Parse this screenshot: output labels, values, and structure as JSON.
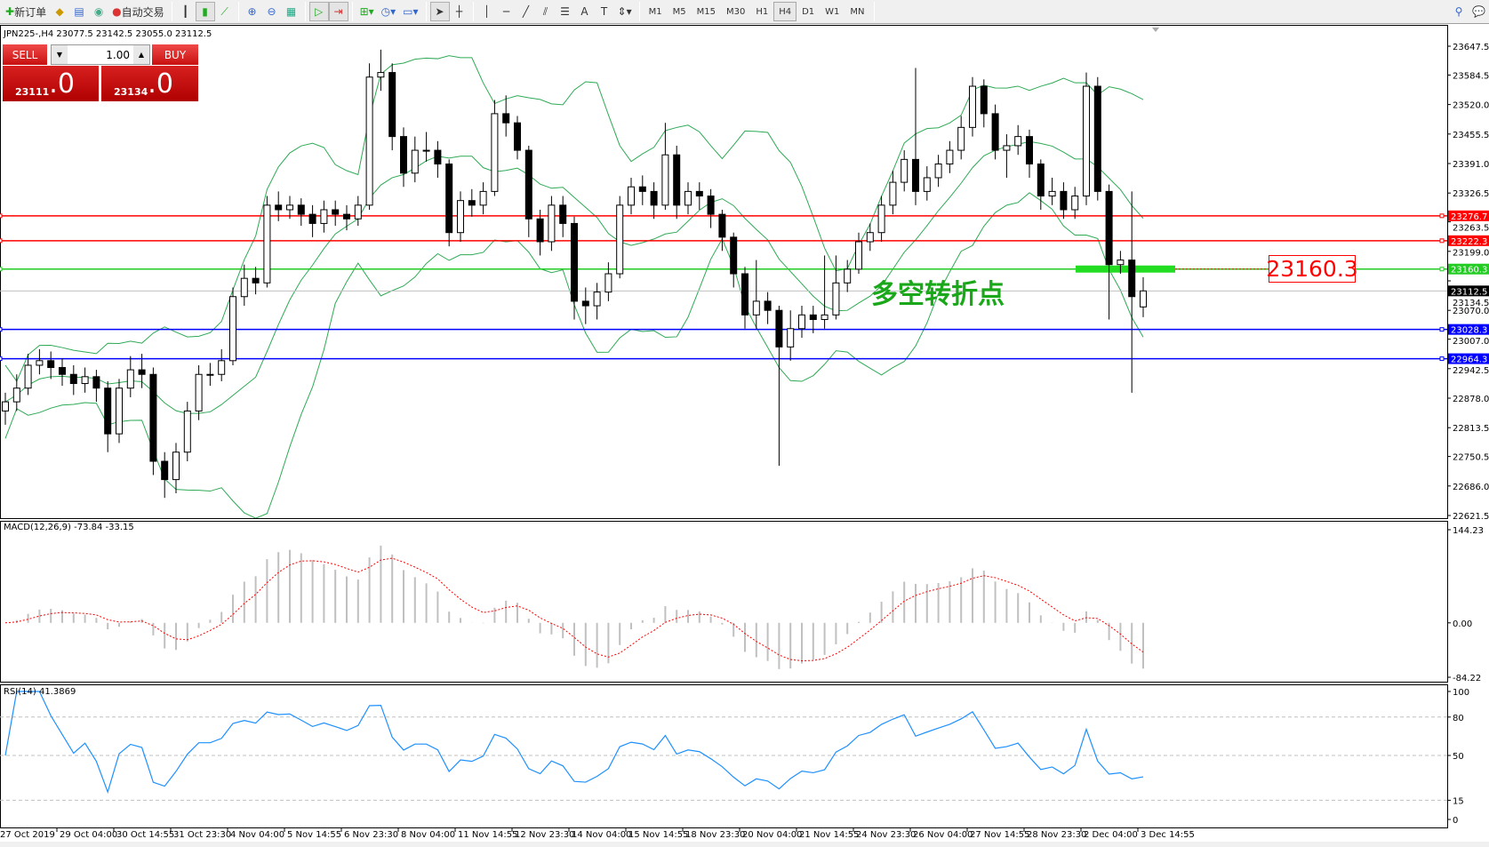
{
  "toolbar": {
    "new_order_label": "新订单",
    "auto_trade_label": "自动交易",
    "icons": [
      "new-order-icon",
      "market-watch-icon",
      "navigator-icon",
      "signals-icon",
      "auto-trading-icon",
      "bar-chart-icon",
      "candlestick-icon",
      "line-chart-icon",
      "zoom-in-icon",
      "zoom-out-icon",
      "tile-windows-icon",
      "autoscroll-icon",
      "chart-shift-icon",
      "indicators-icon",
      "periods-icon",
      "templates-icon",
      "cursor-icon",
      "crosshair-icon",
      "vertical-line-icon",
      "horizontal-line-icon",
      "trendline-icon",
      "equidistant-channel-icon",
      "fibonacci-icon",
      "text-icon",
      "text-label-icon",
      "arrows-icon",
      "search-icon",
      "chat-icon"
    ],
    "timeframes": [
      "M1",
      "M5",
      "M15",
      "M30",
      "H1",
      "H4",
      "D1",
      "W1",
      "MN"
    ],
    "active_timeframe": "H4"
  },
  "chart": {
    "title": "JPN225-,H4  23077.5 23142.5 23055.0 23112.5",
    "trade_panel": {
      "sell_label": "SELL",
      "buy_label": "BUY",
      "lots": "1.00",
      "bid_main": "23111",
      "bid_frac": ".0",
      "ask_main": "23134",
      "ask_frac": ".0"
    },
    "annotation_text": "多空转折点",
    "annotation_box": "23160.3",
    "colors": {
      "bull": "#000000",
      "band": "#2eaa55",
      "resistance": "#ff0000",
      "pivot": "#22cc22",
      "support": "#0000ff",
      "macd_hist": "#c0c0c0",
      "macd_signal": "#ff0000",
      "rsi": "#1e90ff"
    }
  },
  "chart_data": [
    {
      "type": "candlestick",
      "symbol": "JPN225-",
      "timeframe": "H4",
      "ylim": [
        22621.5,
        23647.5
      ],
      "y_ticks": [
        "23647.5",
        "23584.5",
        "23520.0",
        "23455.5",
        "23391.0",
        "23326.5",
        "23263.5",
        "23199.0",
        "23134.5",
        "23070.0",
        "23007.0",
        "22942.5",
        "22878.0",
        "22813.5",
        "22750.5",
        "22686.0",
        "22621.5"
      ],
      "y_tick_values": [
        23647.5,
        23584.5,
        23520.0,
        23455.5,
        23391.0,
        23326.5,
        23263.5,
        23199.0,
        23134.5,
        23070.0,
        23007.0,
        22942.5,
        22878.0,
        22813.5,
        22750.5,
        22686.0,
        22621.5
      ],
      "current_price": "23112.5",
      "hlines": [
        {
          "value": 23276.7,
          "label": "23276.7",
          "color": "#ff0000"
        },
        {
          "value": 23222.3,
          "label": "23222.3",
          "color": "#ff0000"
        },
        {
          "value": 23160.3,
          "label": "23160.3",
          "color": "#22cc22"
        },
        {
          "value": 23028.3,
          "label": "23028.3",
          "color": "#0000ff"
        },
        {
          "value": 22964.3,
          "label": "22964.3",
          "color": "#0000ff"
        }
      ],
      "x_labels": [
        "27 Oct 2019",
        "29 Oct 04:00",
        "30 Oct 14:55",
        "31 Oct 23:30",
        "4 Nov 04:00",
        "5 Nov 14:55",
        "6 Nov 23:30",
        "8 Nov 04:00",
        "11 Nov 14:55",
        "12 Nov 23:30",
        "14 Nov 04:00",
        "15 Nov 14:55",
        "18 Nov 23:30",
        "20 Nov 04:00",
        "21 Nov 14:55",
        "24 Nov 23:30",
        "26 Nov 04:00",
        "27 Nov 14:55",
        "28 Nov 23:30",
        "2 Dec 04:00",
        "3 Dec 14:55"
      ],
      "candles": [
        [
          22850,
          22890,
          22820,
          22870
        ],
        [
          22870,
          22930,
          22850,
          22900
        ],
        [
          22900,
          22975,
          22885,
          22950
        ],
        [
          22950,
          22985,
          22930,
          22960
        ],
        [
          22960,
          22980,
          22920,
          22945
        ],
        [
          22945,
          22965,
          22905,
          22930
        ],
        [
          22930,
          22950,
          22885,
          22910
        ],
        [
          22910,
          22945,
          22890,
          22925
        ],
        [
          22925,
          22940,
          22870,
          22900
        ],
        [
          22900,
          22915,
          22760,
          22800
        ],
        [
          22800,
          22920,
          22780,
          22900
        ],
        [
          22900,
          22970,
          22880,
          22940
        ],
        [
          22940,
          22975,
          22900,
          22930
        ],
        [
          22930,
          22945,
          22710,
          22740
        ],
        [
          22740,
          22760,
          22660,
          22700
        ],
        [
          22700,
          22780,
          22670,
          22760
        ],
        [
          22760,
          22870,
          22740,
          22850
        ],
        [
          22850,
          22950,
          22830,
          22930
        ],
        [
          22930,
          22955,
          22905,
          22930
        ],
        [
          22930,
          22985,
          22915,
          22960
        ],
        [
          22960,
          23120,
          22950,
          23100
        ],
        [
          23100,
          23170,
          23080,
          23140
        ],
        [
          23140,
          23165,
          23105,
          23130
        ],
        [
          23130,
          23320,
          23120,
          23300
        ],
        [
          23300,
          23330,
          23265,
          23290
        ],
        [
          23290,
          23320,
          23270,
          23300
        ],
        [
          23300,
          23315,
          23255,
          23280
        ],
        [
          23280,
          23300,
          23230,
          23260
        ],
        [
          23260,
          23310,
          23240,
          23290
        ],
        [
          23290,
          23310,
          23255,
          23280
        ],
        [
          23280,
          23300,
          23245,
          23270
        ],
        [
          23270,
          23320,
          23255,
          23300
        ],
        [
          23300,
          23610,
          23290,
          23580
        ],
        [
          23580,
          23640,
          23550,
          23590
        ],
        [
          23590,
          23610,
          23420,
          23450
        ],
        [
          23450,
          23470,
          23340,
          23370
        ],
        [
          23370,
          23450,
          23350,
          23420
        ],
        [
          23420,
          23460,
          23395,
          23420
        ],
        [
          23420,
          23440,
          23360,
          23390
        ],
        [
          23390,
          23400,
          23210,
          23240
        ],
        [
          23240,
          23330,
          23220,
          23310
        ],
        [
          23310,
          23335,
          23275,
          23300
        ],
        [
          23300,
          23350,
          23280,
          23330
        ],
        [
          23330,
          23530,
          23320,
          23500
        ],
        [
          23500,
          23540,
          23450,
          23480
        ],
        [
          23480,
          23495,
          23400,
          23420
        ],
        [
          23420,
          23430,
          23230,
          23270
        ],
        [
          23270,
          23290,
          23190,
          23220
        ],
        [
          23220,
          23320,
          23200,
          23300
        ],
        [
          23300,
          23320,
          23230,
          23260
        ],
        [
          23260,
          23275,
          23050,
          23090
        ],
        [
          23090,
          23120,
          23040,
          23080
        ],
        [
          23080,
          23130,
          23050,
          23110
        ],
        [
          23110,
          23175,
          23090,
          23150
        ],
        [
          23150,
          23320,
          23140,
          23300
        ],
        [
          23300,
          23360,
          23280,
          23340
        ],
        [
          23340,
          23365,
          23300,
          23330
        ],
        [
          23330,
          23350,
          23270,
          23300
        ],
        [
          23300,
          23480,
          23290,
          23410
        ],
        [
          23410,
          23430,
          23270,
          23300
        ],
        [
          23300,
          23350,
          23280,
          23330
        ],
        [
          23330,
          23350,
          23290,
          23320
        ],
        [
          23320,
          23335,
          23250,
          23280
        ],
        [
          23280,
          23290,
          23200,
          23230
        ],
        [
          23230,
          23240,
          23120,
          23150
        ],
        [
          23150,
          23165,
          23030,
          23060
        ],
        [
          23060,
          23180,
          23030,
          23090
        ],
        [
          23090,
          23110,
          23040,
          23070
        ],
        [
          23070,
          23080,
          22730,
          22990
        ],
        [
          22990,
          23070,
          22960,
          23030
        ],
        [
          23030,
          23080,
          23010,
          23060
        ],
        [
          23060,
          23080,
          23020,
          23050
        ],
        [
          23050,
          23190,
          23030,
          23060
        ],
        [
          23060,
          23190,
          23050,
          23130
        ],
        [
          23130,
          23180,
          23110,
          23160
        ],
        [
          23160,
          23240,
          23150,
          23220
        ],
        [
          23220,
          23260,
          23200,
          23240
        ],
        [
          23240,
          23320,
          23220,
          23300
        ],
        [
          23300,
          23375,
          23280,
          23350
        ],
        [
          23350,
          23420,
          23330,
          23400
        ],
        [
          23400,
          23600,
          23300,
          23330
        ],
        [
          23330,
          23385,
          23310,
          23360
        ],
        [
          23360,
          23410,
          23340,
          23390
        ],
        [
          23390,
          23440,
          23370,
          23420
        ],
        [
          23420,
          23495,
          23400,
          23470
        ],
        [
          23470,
          23580,
          23450,
          23560
        ],
        [
          23560,
          23575,
          23470,
          23500
        ],
        [
          23500,
          23520,
          23400,
          23420
        ],
        [
          23420,
          23455,
          23360,
          23430
        ],
        [
          23430,
          23475,
          23410,
          23450
        ],
        [
          23450,
          23465,
          23360,
          23390
        ],
        [
          23390,
          23400,
          23290,
          23320
        ],
        [
          23320,
          23360,
          23300,
          23330
        ],
        [
          23330,
          23350,
          23270,
          23290
        ],
        [
          23290,
          23340,
          23270,
          23320
        ],
        [
          23320,
          23590,
          23300,
          23560
        ],
        [
          23560,
          23580,
          23310,
          23330
        ],
        [
          23330,
          23345,
          23050,
          23170
        ],
        [
          23170,
          23200,
          23150,
          23180
        ],
        [
          23180,
          23330,
          22890,
          23100
        ],
        [
          23077.5,
          23142.5,
          23055.0,
          23112.5
        ]
      ]
    },
    {
      "type": "bar",
      "indicator": "MACD(12,26,9) -73.84 -33.15",
      "ylim": [
        -84.22,
        144.23
      ],
      "y_ticks": [
        "144.23",
        "0.00",
        "-84.22"
      ]
    },
    {
      "type": "line",
      "indicator": "RSI(14) 41.3869",
      "ylim": [
        0,
        100
      ],
      "levels": [
        80,
        50,
        15
      ],
      "y_ticks": [
        "100",
        "80",
        "50",
        "15",
        "0"
      ]
    }
  ]
}
